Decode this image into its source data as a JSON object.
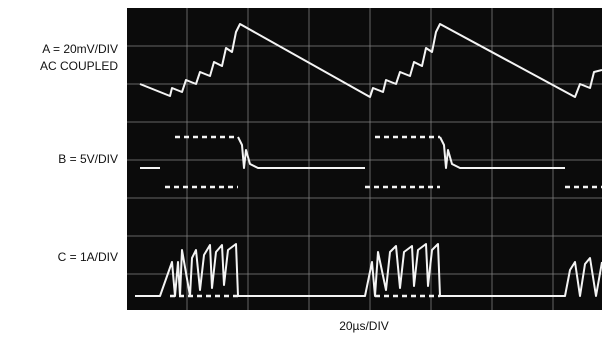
{
  "labels": {
    "a_scale": "A = 20mV/DIV",
    "a_coupling": "AC COUPLED",
    "b_scale": "B = 5V/DIV",
    "c_scale": "C = 1A/DIV"
  },
  "time_scale": "20µs/DIV"
}
